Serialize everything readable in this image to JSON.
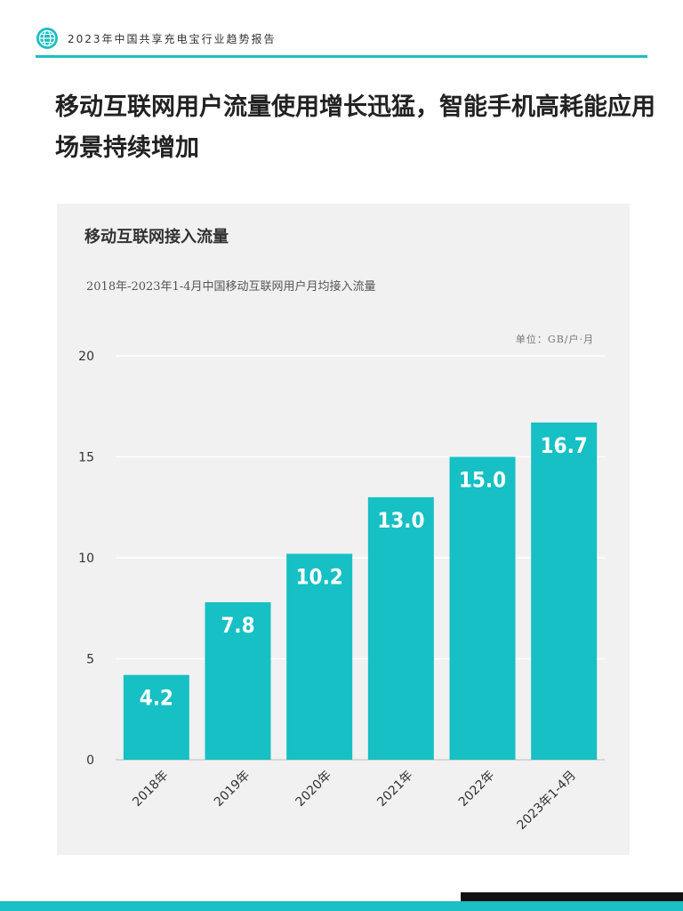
{
  "header": {
    "report_title": "2023年中国共享充电宝行业趋势报告",
    "logo_icon": "globe-icon",
    "accent_color": "#1bbfc4"
  },
  "headline": "移动互联网用户流量使用增长迅猛，智能手机高耗能应用场景持续增加",
  "chart_data": {
    "type": "bar",
    "title": "移动互联网接入流量",
    "subtitle": "2018年-2023年1-4月中国移动互联网用户月均接入流量",
    "unit": "单位：GB/户·月",
    "categories": [
      "2018年",
      "2019年",
      "2020年",
      "2021年",
      "2022年",
      "2023年1-4月"
    ],
    "values": [
      4.2,
      7.8,
      10.2,
      13.0,
      15.0,
      16.7
    ],
    "value_labels": [
      "4.2",
      "7.8",
      "10.2",
      "13.0",
      "15.0",
      "16.7"
    ],
    "ylim": [
      0,
      20
    ],
    "yticks": [
      0,
      5,
      10,
      15,
      20
    ],
    "grid": true,
    "bar_color": "#16c0c4"
  }
}
